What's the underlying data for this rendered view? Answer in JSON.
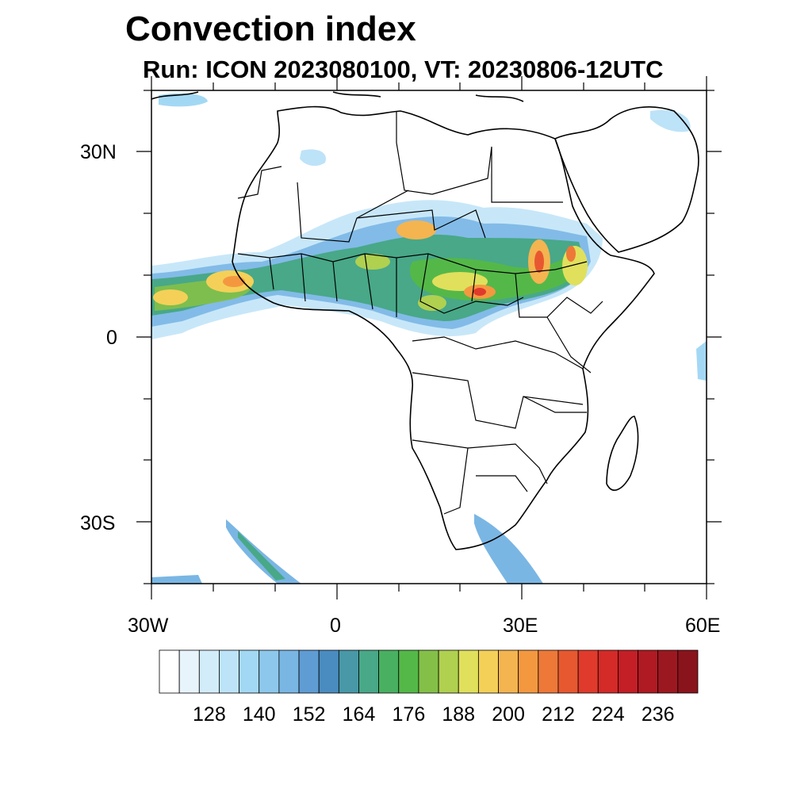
{
  "title": "Convection index",
  "subtitle": "Run: ICON 2023080100,  VT: 20230806-12UTC",
  "map": {
    "lat_labels": [
      "30N",
      "0",
      "30S"
    ],
    "lon_labels": [
      "30W",
      "0",
      "30E",
      "60E"
    ],
    "lon_range": [
      "30W",
      "60E"
    ],
    "lat_range": [
      "40S",
      "40N"
    ]
  },
  "colorbar": {
    "labels": [
      "128",
      "140",
      "152",
      "164",
      "176",
      "188",
      "200",
      "212",
      "224",
      "236"
    ],
    "colors": [
      "#ffffff",
      "#e8f4fc",
      "#d3ecfa",
      "#bde3f8",
      "#a3d8f4",
      "#8dc8ec",
      "#7ab6e4",
      "#5f9cd4",
      "#4a8cc0",
      "#4898a8",
      "#48a888",
      "#48b060",
      "#54b848",
      "#84c048",
      "#b0d050",
      "#e0e05c",
      "#f4d058",
      "#f4b450",
      "#f49840",
      "#ee7838",
      "#e85830",
      "#e03a2c",
      "#d42a28",
      "#c41e26",
      "#b01a22",
      "#9c1820",
      "#8a141c"
    ]
  }
}
